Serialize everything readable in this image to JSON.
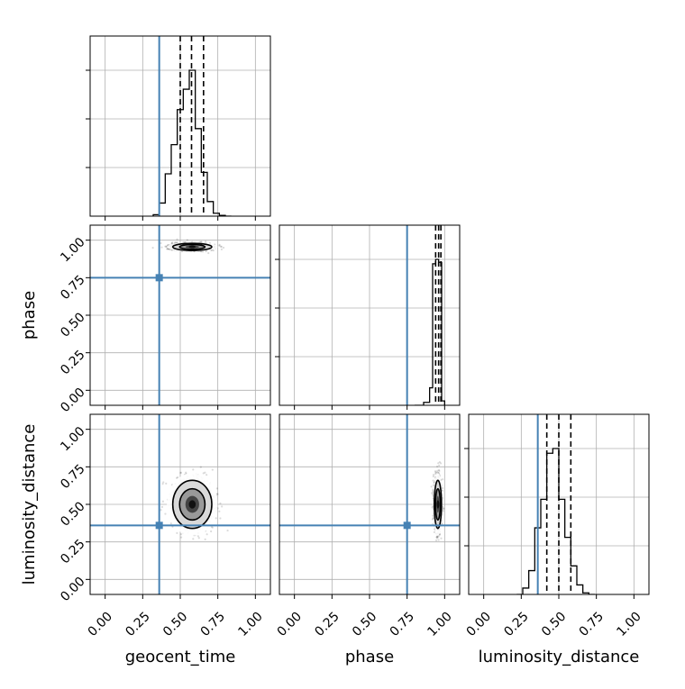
{
  "chart_data": {
    "type": "corner",
    "parameters": [
      "geocent_time",
      "phase",
      "luminosity_distance"
    ],
    "axis_range": [
      -0.1,
      1.1
    ],
    "ticks": [
      0.0,
      0.25,
      0.5,
      0.75,
      1.0
    ],
    "tick_labels": [
      "0.00",
      "0.25",
      "0.50",
      "0.75",
      "1.00"
    ],
    "grid": true,
    "colors": {
      "truth": "#4682b4",
      "hist": "#000000",
      "grid": "#b0b0b0"
    },
    "truths": {
      "geocent_time": 0.36,
      "phase": 0.75,
      "luminosity_distance": 0.36
    },
    "marginals": {
      "geocent_time": {
        "bin_edges": [
          0.32,
          0.36,
          0.4,
          0.44,
          0.48,
          0.52,
          0.56,
          0.6,
          0.64,
          0.68,
          0.72,
          0.76,
          0.8,
          0.84
        ],
        "values": [
          0.01,
          0.09,
          0.29,
          0.49,
          0.73,
          0.87,
          1.0,
          0.6,
          0.3,
          0.1,
          0.02,
          0.005,
          0.0
        ],
        "quantiles": [
          0.5,
          0.575,
          0.655
        ]
      },
      "phase": {
        "bin_edges": [
          0.8,
          0.86,
          0.9,
          0.92,
          0.94,
          0.96,
          0.98,
          1.0
        ],
        "values": [
          0.0,
          0.02,
          0.12,
          0.97,
          1.0,
          0.98,
          0.03
        ],
        "quantiles": [
          0.94,
          0.96,
          0.975
        ]
      },
      "luminosity_distance": {
        "bin_edges": [
          0.22,
          0.26,
          0.3,
          0.34,
          0.38,
          0.42,
          0.46,
          0.5,
          0.54,
          0.58,
          0.62,
          0.66,
          0.7,
          0.74
        ],
        "values": [
          0.0,
          0.04,
          0.15,
          0.42,
          0.6,
          0.89,
          0.92,
          0.6,
          0.36,
          0.18,
          0.06,
          0.01,
          0.0
        ],
        "quantiles": [
          0.42,
          0.5,
          0.58
        ]
      }
    },
    "joint": [
      {
        "x": "geocent_time",
        "y": "phase",
        "mean": [
          0.58,
          0.955
        ],
        "sd": [
          0.065,
          0.012
        ]
      },
      {
        "x": "geocent_time",
        "y": "luminosity_distance",
        "mean": [
          0.58,
          0.5
        ],
        "sd": [
          0.065,
          0.08
        ]
      },
      {
        "x": "phase",
        "y": "luminosity_distance",
        "mean": [
          0.955,
          0.5
        ],
        "sd": [
          0.012,
          0.08
        ]
      }
    ]
  }
}
